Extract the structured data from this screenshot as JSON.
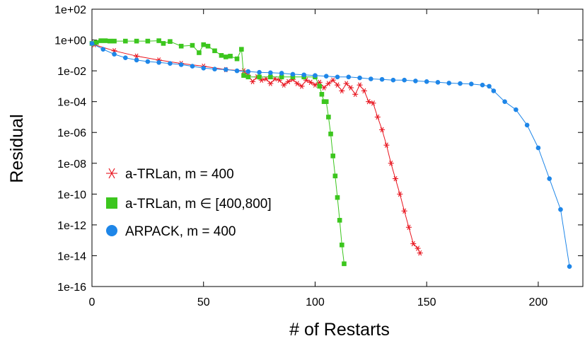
{
  "chart_data": {
    "type": "line",
    "xlabel": "# of Restarts",
    "ylabel": "Residual",
    "xlim": [
      0,
      220
    ],
    "ylim_log10": [
      -16,
      2
    ],
    "y_scale": "log",
    "grid": false,
    "legend_placement": "left-middle",
    "xticks": [
      0,
      50,
      100,
      150,
      200
    ],
    "xtick_labels": [
      "0",
      "50",
      "100",
      "150",
      "200"
    ],
    "yticks_log10": [
      2,
      0,
      -2,
      -4,
      -6,
      -8,
      -10,
      -12,
      -14,
      -16
    ],
    "ytick_labels": [
      "1e+02",
      "1e+00",
      "1e-02",
      "1e-04",
      "1e-06",
      "1e-08",
      "1e-10",
      "1e-12",
      "1e-14",
      "1e-16"
    ],
    "series": [
      {
        "name": "a-TRLan, m = 400",
        "marker": "asterisk",
        "color": "#e8141e",
        "x": [
          1,
          10,
          20,
          30,
          40,
          50,
          60,
          68,
          70,
          72,
          74,
          76,
          78,
          80,
          82,
          84,
          86,
          88,
          90,
          92,
          94,
          96,
          98,
          100,
          102,
          104,
          106,
          108,
          110,
          112,
          114,
          116,
          118,
          120,
          122,
          124,
          126,
          128,
          130,
          132,
          134,
          136,
          138,
          140,
          142,
          144,
          146,
          147
        ],
        "y": [
          0.5,
          0.2,
          0.09,
          0.05,
          0.03,
          0.02,
          0.012,
          0.01,
          0.005,
          0.002,
          0.004,
          0.0025,
          0.003,
          0.0015,
          0.003,
          0.0025,
          0.0012,
          0.002,
          0.0028,
          0.0015,
          0.001,
          0.0025,
          0.0018,
          0.0012,
          0.0018,
          0.0008,
          0.0015,
          0.0025,
          0.0012,
          0.0005,
          0.0015,
          0.0008,
          0.0003,
          0.0012,
          0.0005,
          0.0001,
          8e-05,
          1e-05,
          1.5e-06,
          1.5e-07,
          1e-08,
          1e-09,
          1e-10,
          8e-12,
          7e-13,
          6e-14,
          3e-14,
          1.5e-14
        ]
      },
      {
        "name": "a-TRLan, m ∈ [400,800]",
        "marker": "square",
        "color": "#3cc61e",
        "x": [
          0,
          2,
          4,
          6,
          8,
          10,
          15,
          20,
          25,
          30,
          32,
          35,
          40,
          45,
          48,
          50,
          52,
          55,
          58,
          60,
          62,
          65,
          67,
          68,
          70,
          75,
          80,
          85,
          90,
          95,
          100,
          102,
          103,
          104,
          105,
          106,
          107,
          108,
          109,
          110,
          111,
          112,
          113
        ],
        "y": [
          0.6,
          0.7,
          0.9,
          0.9,
          0.85,
          0.85,
          0.85,
          0.85,
          0.85,
          0.9,
          0.6,
          0.8,
          0.4,
          0.45,
          0.15,
          0.5,
          0.4,
          0.2,
          0.1,
          0.08,
          0.09,
          0.06,
          0.25,
          0.005,
          0.004,
          0.004,
          0.004,
          0.004,
          0.004,
          0.004,
          0.004,
          0.001,
          0.0003,
          0.0001,
          0.0001,
          1e-05,
          8e-07,
          3e-08,
          1.5e-09,
          6e-11,
          2e-12,
          5e-14,
          3e-15
        ]
      },
      {
        "name": "ARPACK, m = 400",
        "marker": "circle",
        "color": "#1e86e8",
        "x": [
          0,
          5,
          10,
          15,
          20,
          25,
          30,
          35,
          40,
          45,
          50,
          55,
          60,
          65,
          70,
          75,
          80,
          85,
          90,
          95,
          100,
          105,
          110,
          115,
          120,
          125,
          130,
          135,
          140,
          145,
          150,
          155,
          160,
          165,
          170,
          175,
          178,
          180,
          185,
          190,
          195,
          200,
          205,
          210,
          214
        ],
        "y": [
          0.6,
          0.25,
          0.12,
          0.07,
          0.05,
          0.04,
          0.035,
          0.03,
          0.025,
          0.02,
          0.015,
          0.013,
          0.012,
          0.01,
          0.009,
          0.008,
          0.0075,
          0.007,
          0.006,
          0.0055,
          0.005,
          0.0045,
          0.004,
          0.004,
          0.0035,
          0.003,
          0.0028,
          0.0025,
          0.0025,
          0.0022,
          0.002,
          0.0018,
          0.0016,
          0.0015,
          0.0014,
          0.0012,
          0.001,
          0.0005,
          0.0001,
          3e-05,
          3e-06,
          1e-07,
          1e-09,
          1e-11,
          2e-15
        ]
      }
    ]
  }
}
